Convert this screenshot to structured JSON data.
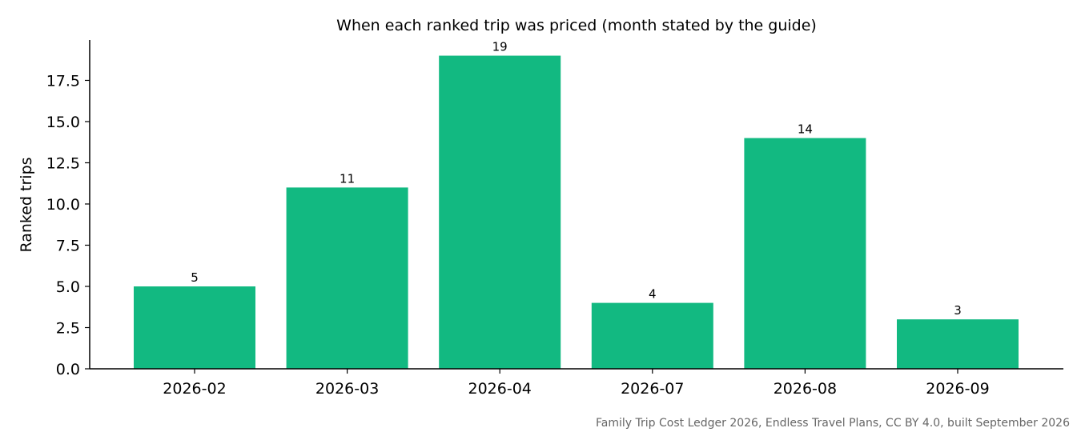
{
  "caption": "Family Trip Cost Ledger 2026, Endless Travel Plans, CC BY 4.0, built September 2026",
  "chart_data": {
    "type": "bar",
    "title": "When each ranked trip was priced (month stated by the guide)",
    "xlabel": "",
    "ylabel": "Ranked trips",
    "categories": [
      "2026-02",
      "2026-03",
      "2026-04",
      "2026-07",
      "2026-08",
      "2026-09"
    ],
    "values": [
      5,
      11,
      19,
      4,
      14,
      3
    ],
    "ylim": [
      0,
      19.95
    ],
    "yticks": [
      "0.0",
      "2.5",
      "5.0",
      "7.5",
      "10.0",
      "12.5",
      "15.0",
      "17.5"
    ],
    "bar_color": "#12b981",
    "grid": false,
    "legend": "none"
  }
}
